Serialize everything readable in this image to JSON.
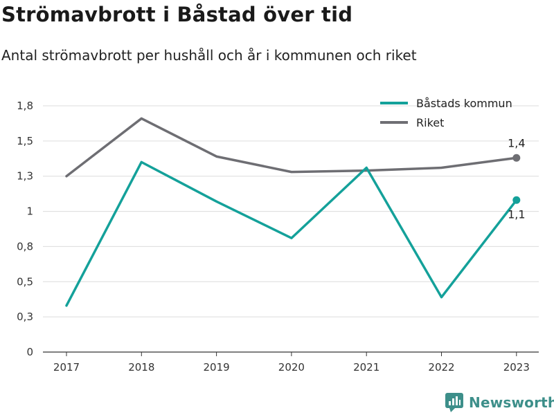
{
  "header": {
    "title": "Strömavbrott i Båstad över tid",
    "subtitle": "Antal strömavbrott per hushåll och år i kommunen och riket"
  },
  "brand": {
    "name": "Newsworthy",
    "icon": "newsworthy-logo-icon",
    "color": "#3d8f8a"
  },
  "chart_data": {
    "type": "line",
    "x": [
      "2017",
      "2018",
      "2019",
      "2020",
      "2021",
      "2022",
      "2023"
    ],
    "y_ticks": [
      {
        "value": 0,
        "label": "0"
      },
      {
        "value": 0.25,
        "label": "0,3"
      },
      {
        "value": 0.5,
        "label": "0,5"
      },
      {
        "value": 0.75,
        "label": "0,8"
      },
      {
        "value": 1.0,
        "label": "1"
      },
      {
        "value": 1.25,
        "label": "1,3"
      },
      {
        "value": 1.5,
        "label": "1,5"
      },
      {
        "value": 1.75,
        "label": "1,8"
      }
    ],
    "ylim": [
      0,
      1.75
    ],
    "grid": true,
    "legend": "top-right",
    "series": [
      {
        "name": "Båstads kommun",
        "color": "#14a19a",
        "values": [
          0.33,
          1.35,
          1.07,
          0.81,
          1.31,
          0.39,
          1.08
        ],
        "end_label": "1,1"
      },
      {
        "name": "Riket",
        "color": "#6e6e73",
        "values": [
          1.25,
          1.66,
          1.39,
          1.28,
          1.29,
          1.31,
          1.38
        ],
        "end_label": "1,4"
      }
    ]
  }
}
